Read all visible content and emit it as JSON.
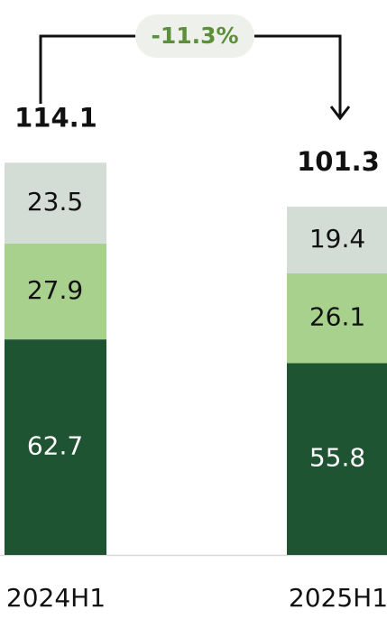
{
  "chart_data": {
    "type": "stacked_bar",
    "categories": [
      "2024H1",
      "2025H1"
    ],
    "series": [
      {
        "color": "#1f5432",
        "values": [
          62.7,
          55.8
        ]
      },
      {
        "color": "#a9d18e",
        "values": [
          27.9,
          26.1
        ]
      },
      {
        "color": "#d3ddd6",
        "values": [
          23.5,
          19.4
        ]
      }
    ],
    "totals": [
      114.1,
      101.3
    ],
    "annotation": "-11.3%"
  }
}
